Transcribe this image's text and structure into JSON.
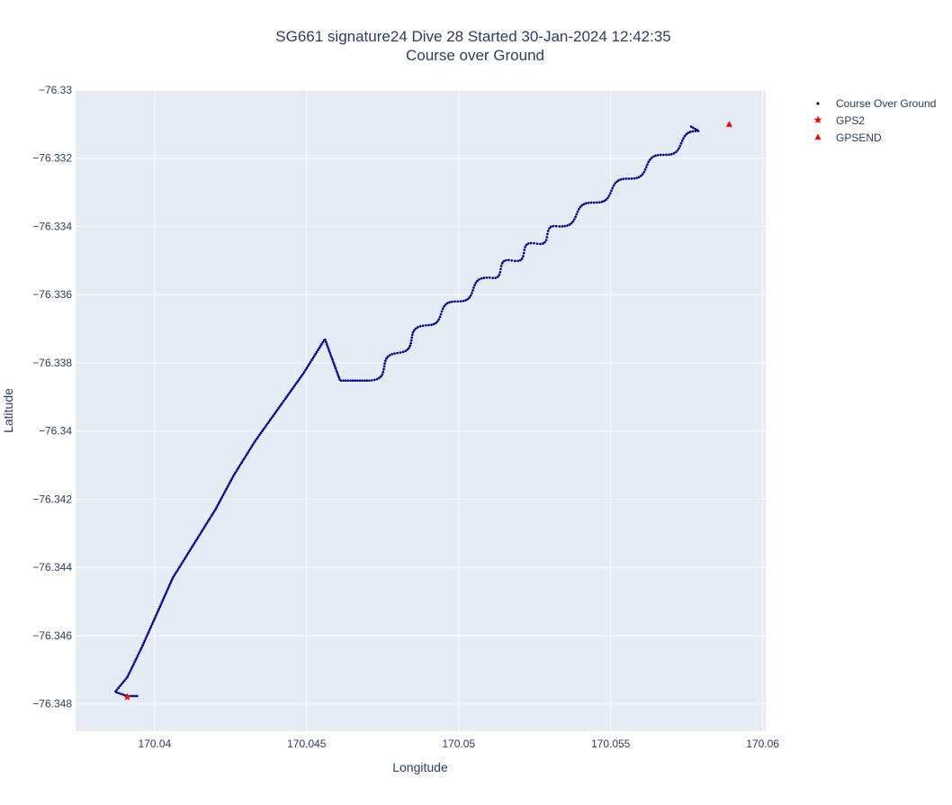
{
  "chart_data": {
    "type": "scatter",
    "title": "SG661 signature24 Dive 28 Started 30-Jan-2024 12:42:35",
    "subtitle": "Course over Ground",
    "xlabel": "Longitude",
    "ylabel": "Latitude",
    "xlim": [
      170.0374,
      170.0601
    ],
    "ylim": [
      -76.3488,
      -76.33
    ],
    "xticks": [
      "170.04",
      "170.045",
      "170.05",
      "170.055",
      "170.06"
    ],
    "yticks": [
      "−76.33",
      "−76.332",
      "−76.334",
      "−76.336",
      "−76.338",
      "−76.34",
      "−76.342",
      "−76.344",
      "−76.346",
      "−76.348"
    ],
    "grid": true,
    "legend_position": "top-right",
    "series": [
      {
        "name": "Course Over Ground",
        "marker": "dot",
        "color": "#00008b",
        "x": [
          170.0395,
          170.0391,
          170.0387,
          170.0391,
          170.0396,
          170.0401,
          170.0406,
          170.0413,
          170.042,
          170.0426,
          170.0433,
          170.0441,
          170.0449,
          170.0456,
          170.0461,
          170.0471,
          170.0489,
          170.051,
          170.0533,
          170.0556,
          170.0579,
          170.0576
        ],
        "y": [
          -76.34777,
          -76.34777,
          -76.34765,
          -76.34722,
          -76.3463,
          -76.3453,
          -76.3443,
          -76.3433,
          -76.3423,
          -76.3413,
          -76.3403,
          -76.3393,
          -76.3383,
          -76.3373,
          -76.33852,
          -76.33852,
          -76.3369,
          -76.3355,
          -76.334,
          -76.3326,
          -76.3312,
          -76.33105
        ]
      },
      {
        "name": "GPS2",
        "marker": "star",
        "color": "#ff0000",
        "x": [
          170.0391
        ],
        "y": [
          -76.3478
        ]
      },
      {
        "name": "GPSEND",
        "marker": "triangle-up",
        "color": "#ff0000",
        "x": [
          170.0589
        ],
        "y": [
          -76.331
        ]
      }
    ]
  }
}
